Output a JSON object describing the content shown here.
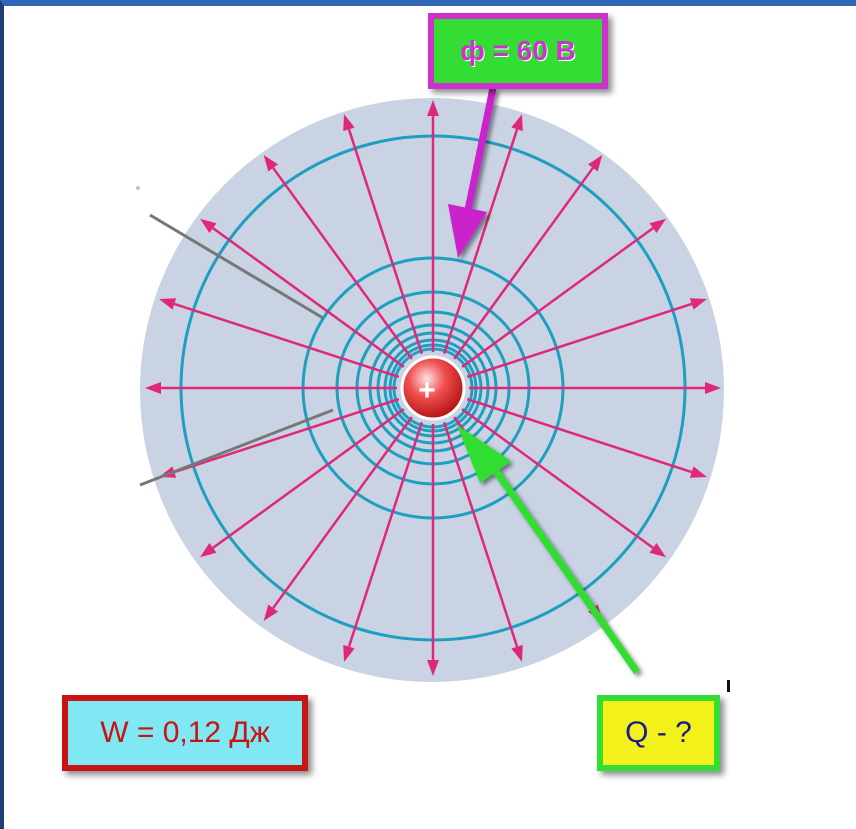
{
  "labels": {
    "potential": "ф = 60 В",
    "energy": "W = 0,12 Дж",
    "charge": "Q - ?",
    "charge_sign": "+"
  },
  "colors": {
    "field_disc": "#c9d3e4",
    "field_lines": "#e0287a",
    "equipotentials": "#1e9fc0",
    "charge": "#e83a3a",
    "potential_border": "#cc33cc",
    "potential_fill": "#33dd33",
    "energy_border": "#c81414",
    "energy_fill": "#7fe8f2",
    "charge_box_border": "#33dd33",
    "charge_box_fill": "#f2f21a"
  },
  "diagram": {
    "field_line_count": 20,
    "equipotential_count": 9
  }
}
